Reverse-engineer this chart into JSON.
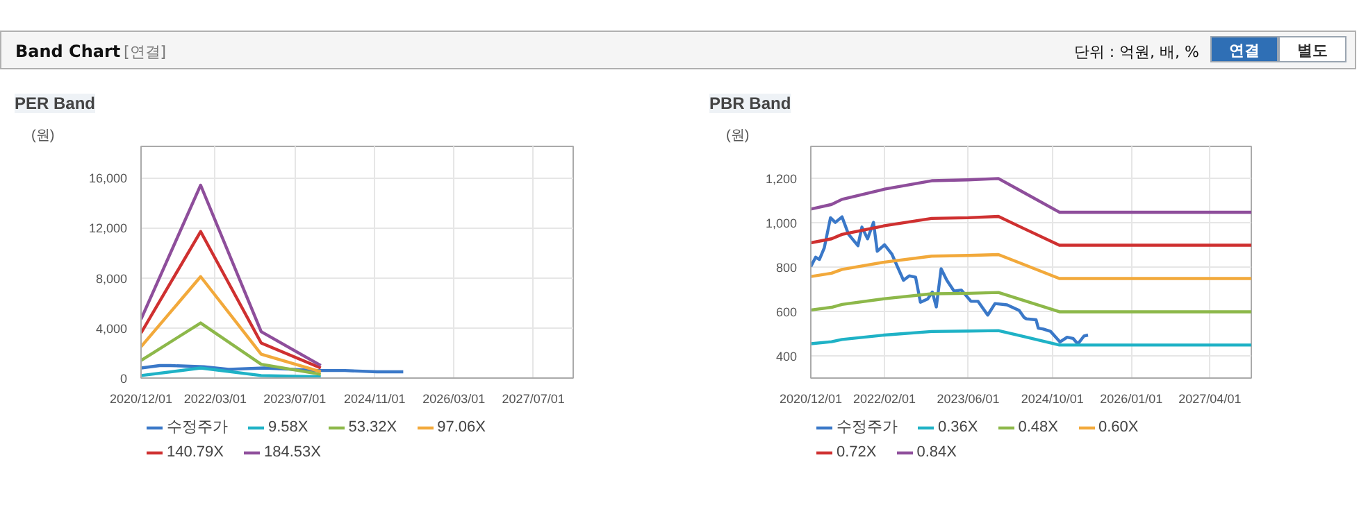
{
  "chart_data": [
    {
      "type": "other",
      "title": "Band Chart",
      "subtitle": "[연결]",
      "annotations": [
        "단위 : 억원, 배, %",
        "연결",
        "별도"
      ]
    },
    {
      "type": "line",
      "title": "PER Band",
      "ylabel": "(원)",
      "grid": true,
      "legend": "bottom",
      "xlim": [
        "2020-12-01",
        "2028-03-01"
      ],
      "ylim": [
        0,
        18500
      ],
      "xticks": [
        {
          "value": "2020-12-01",
          "label": "2020/12/01"
        },
        {
          "value": "2022-03-01",
          "label": "2022/03/01"
        },
        {
          "value": "2023-07-01",
          "label": "2023/07/01"
        },
        {
          "value": "2024-11-01",
          "label": "2024/11/01"
        },
        {
          "value": "2026-03-01",
          "label": "2026/03/01"
        },
        {
          "value": "2027-07-01",
          "label": "2027/07/01"
        }
      ],
      "yticks": [
        0,
        {
          "value": 4000,
          "label": "4,000"
        },
        {
          "value": 8000,
          "label": "8,000"
        },
        {
          "value": 12000,
          "label": "12,000"
        },
        {
          "value": 16000,
          "label": "16,000"
        }
      ],
      "x": [
        "2020-12-01",
        "2021-12-01",
        "2022-12-07",
        "2023-12-07"
      ],
      "series": [
        {
          "name": "수정주가",
          "color": "#3a78c8",
          "x": [
            "2020-12-01",
            "2021-03-25",
            "2021-05-31",
            "2021-12-21",
            "2022-05-22",
            "2022-12-26",
            "2023-06-17",
            "2023-11-03",
            "2024-05-03",
            "2024-11-14",
            "2025-04-25"
          ],
          "values": [
            800,
            1000,
            1000,
            900,
            700,
            800,
            700,
            600,
            600,
            500,
            500
          ]
        },
        {
          "name": "9.58X",
          "color": "#1fb2c6",
          "values": [
            200,
            800,
            200,
            100
          ]
        },
        {
          "name": "53.32X",
          "color": "#8db84a",
          "values": [
            1400,
            4400,
            1100,
            300
          ]
        },
        {
          "name": "97.06X",
          "color": "#f2a93b",
          "values": [
            2500,
            8100,
            1900,
            500
          ]
        },
        {
          "name": "140.79X",
          "color": "#cf3030",
          "values": [
            3600,
            11700,
            2800,
            800
          ]
        },
        {
          "name": "184.53X",
          "color": "#8e4e9b",
          "values": [
            4700,
            15400,
            3700,
            1000
          ]
        }
      ]
    },
    {
      "type": "line",
      "title": "PBR Band",
      "ylabel": "(원)",
      "grid": true,
      "legend": "bottom",
      "xlim": [
        "2020-12-01",
        "2027-11-27"
      ],
      "ylim": [
        300,
        1345
      ],
      "xticks": [
        {
          "value": "2020-12-01",
          "label": "2020/12/01"
        },
        {
          "value": "2022-02-01",
          "label": "2022/02/01"
        },
        {
          "value": "2023-06-01",
          "label": "2023/06/01"
        },
        {
          "value": "2024-10-01",
          "label": "2024/10/01"
        },
        {
          "value": "2026-01-01",
          "label": "2026/01/01"
        },
        {
          "value": "2027-04-01",
          "label": "2027/04/01"
        }
      ],
      "yticks": [
        400,
        600,
        800,
        {
          "value": 1000,
          "label": "1,000"
        },
        {
          "value": 1200,
          "label": "1,200"
        }
      ],
      "x": [
        "2020-12-01",
        "2021-03-31",
        "2021-05-31",
        "2022-02-01",
        "2022-11-01",
        "2023-06-01",
        "2023-11-23",
        "2024-03-23",
        "2024-11-10",
        "2027-11-27"
      ],
      "series": [
        {
          "name": "수정주가",
          "color": "#3a78c8",
          "x": [
            "2020-12-01",
            "2020-12-29",
            "2021-01-20",
            "2021-02-17",
            "2021-03-25",
            "2021-04-22",
            "2021-05-31",
            "2021-07-07",
            "2021-08-31",
            "2021-09-23",
            "2021-10-26",
            "2021-11-29",
            "2021-12-21",
            "2022-02-01",
            "2022-03-15",
            "2022-05-22",
            "2022-06-24",
            "2022-07-31",
            "2022-08-28",
            "2022-10-09",
            "2022-11-05",
            "2022-11-28",
            "2022-12-26",
            "2023-01-28",
            "2023-03-11",
            "2023-04-22",
            "2023-06-17",
            "2023-07-28",
            "2023-09-22",
            "2023-11-03",
            "2024-01-12",
            "2024-03-22",
            "2024-04-20",
            "2024-05-03",
            "2024-06-28",
            "2024-07-11",
            "2024-08-09",
            "2024-09-19",
            "2024-11-14",
            "2024-12-25",
            "2025-01-28",
            "2025-02-25",
            "2025-04-02",
            "2025-04-25"
          ],
          "values": [
            803,
            845,
            835,
            887,
            1023,
            1002,
            1027,
            949,
            897,
            981,
            928,
            1002,
            872,
            901,
            860,
            741,
            761,
            755,
            642,
            657,
            688,
            621,
            793,
            741,
            692,
            697,
            646,
            646,
            584,
            636,
            630,
            605,
            573,
            567,
            563,
            525,
            521,
            511,
            463,
            484,
            479,
            454,
            490,
            494
          ]
        },
        {
          "name": "0.36X",
          "color": "#1fb2c6",
          "values": [
            455,
            464,
            474,
            494,
            510,
            512,
            514,
            492,
            449,
            449
          ]
        },
        {
          "name": "0.48X",
          "color": "#8db84a",
          "values": [
            607,
            619,
            632,
            658,
            680,
            682,
            686,
            656,
            599,
            599
          ]
        },
        {
          "name": "0.60X",
          "color": "#f2a93b",
          "values": [
            758,
            773,
            790,
            823,
            850,
            853,
            857,
            820,
            749,
            749
          ]
        },
        {
          "name": "0.72X",
          "color": "#cf3030",
          "values": [
            910,
            928,
            948,
            987,
            1020,
            1023,
            1029,
            984,
            899,
            899
          ]
        },
        {
          "name": "0.84X",
          "color": "#8e4e9b",
          "values": [
            1062,
            1083,
            1106,
            1152,
            1190,
            1194,
            1200,
            1148,
            1048,
            1048
          ]
        }
      ]
    }
  ]
}
